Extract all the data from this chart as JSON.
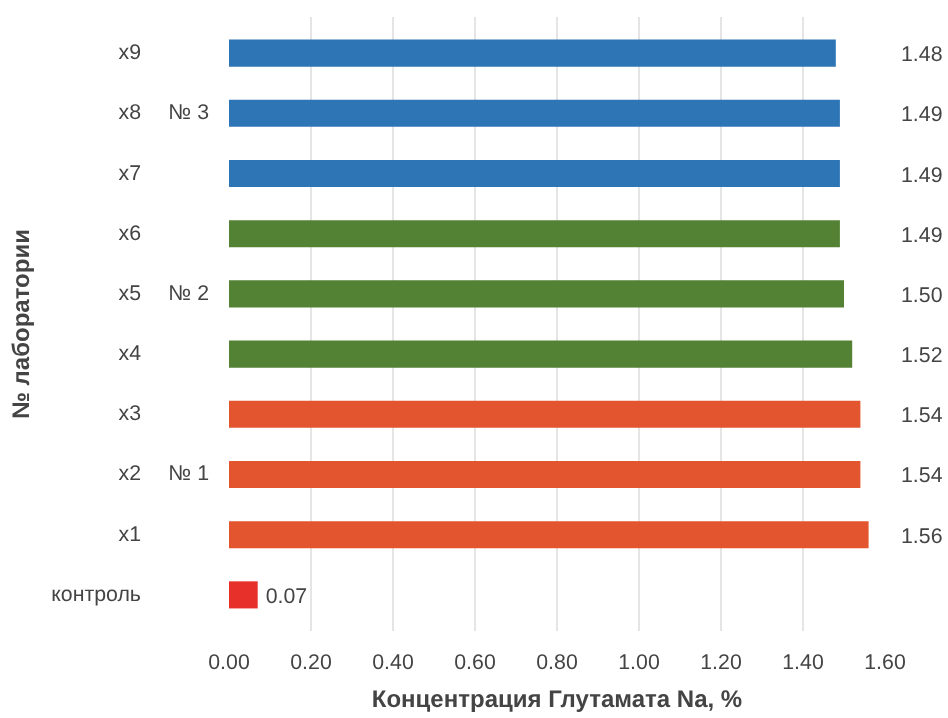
{
  "chart_data": {
    "type": "bar",
    "orientation": "horizontal",
    "xlabel": "Концентрация Глутамата Na, %",
    "ylabel": "№ лаборатории",
    "categories": [
      "x9",
      "x8",
      "x7",
      "x6",
      "x5",
      "x4",
      "x3",
      "x2",
      "x1",
      "контроль"
    ],
    "values": [
      1.48,
      1.49,
      1.49,
      1.49,
      1.5,
      1.52,
      1.54,
      1.54,
      1.56,
      0.07
    ],
    "colors": [
      "#2e75b6",
      "#2e75b6",
      "#2e75b6",
      "#548235",
      "#548235",
      "#548235",
      "#e2552f",
      "#e2552f",
      "#e2552f",
      "#e8302a"
    ],
    "xlim": [
      0,
      1.6
    ],
    "xticks": [
      {
        "value": 0,
        "label": "0.00"
      },
      {
        "value": 0.2,
        "label": "0.20"
      },
      {
        "value": 0.4,
        "label": "0.40"
      },
      {
        "value": 0.6,
        "label": "0.60"
      },
      {
        "value": 0.8,
        "label": "0.80"
      },
      {
        "value": 1.0,
        "label": "1.00"
      },
      {
        "value": 1.2,
        "label": "1.20"
      },
      {
        "value": 1.4,
        "label": "1.40"
      },
      {
        "value": 1.6,
        "label": "1.60"
      }
    ],
    "grid": "x",
    "value_labels": [
      "1.48",
      "1.49",
      "1.49",
      "1.49",
      "1.50",
      "1.52",
      "1.54",
      "1.54",
      "1.56",
      "0.07"
    ],
    "annotations": [
      "№ 3",
      "№ 2",
      "№ 1"
    ]
  }
}
